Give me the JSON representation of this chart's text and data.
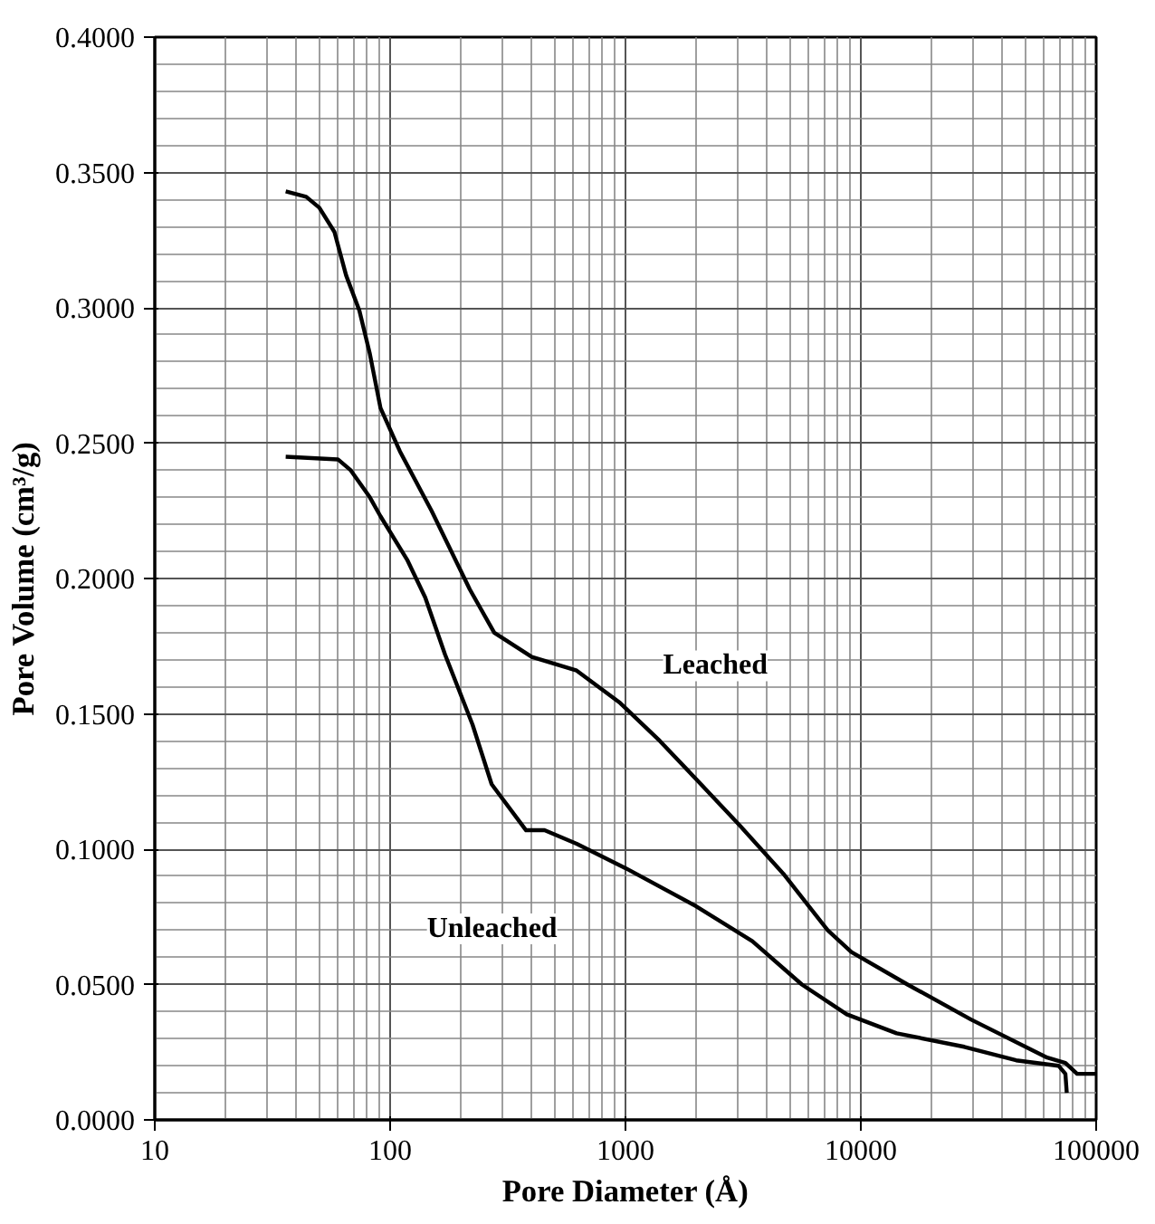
{
  "chart_data": {
    "type": "line",
    "xlabel": "Pore Diameter (Å)",
    "ylabel": "Pore Volume (cm³/g)",
    "log": "x",
    "grid": true,
    "line_style": "solid",
    "marker": "none",
    "xlim": [
      10,
      100000
    ],
    "ylim": [
      0,
      0.4
    ],
    "xticks": [
      10,
      100,
      1000,
      10000,
      100000
    ],
    "yticks": [
      {
        "value": 0,
        "label": "0.0000"
      },
      {
        "value": 0.05,
        "label": "0.0500"
      },
      {
        "value": 0.1,
        "label": "0.1000"
      },
      {
        "value": 0.15,
        "label": "0.1500"
      },
      {
        "value": 0.2,
        "label": "0.2000"
      },
      {
        "value": 0.25,
        "label": "0.2500"
      },
      {
        "value": 0.3,
        "label": "0.3000"
      },
      {
        "value": 0.35,
        "label": "0.3500"
      },
      {
        "value": 0.4,
        "label": "0.4000"
      }
    ],
    "series": [
      {
        "name": "Leached",
        "color": "#000000",
        "x": [
          36,
          44,
          50,
          58,
          65,
          74,
          82,
          91,
          110,
          150,
          218,
          277,
          400,
          620,
          950,
          1400,
          1990,
          3040,
          4680,
          7240,
          9120,
          15800,
          29500,
          61900,
          74000,
          83000,
          100000
        ],
        "values": [
          0.343,
          0.341,
          0.337,
          0.328,
          0.312,
          0.299,
          0.283,
          0.263,
          0.247,
          0.225,
          0.196,
          0.18,
          0.171,
          0.166,
          0.154,
          0.14,
          0.126,
          0.109,
          0.091,
          0.07,
          0.062,
          0.05,
          0.037,
          0.023,
          0.021,
          0.017,
          0.017
        ]
      },
      {
        "name": "Unleached",
        "color": "#000000",
        "x": [
          36,
          60,
          68,
          82,
          91,
          118,
          141,
          171,
          224,
          270,
          378,
          453,
          620,
          1000,
          1990,
          3460,
          5620,
          8710,
          14200,
          27500,
          45700,
          69200,
          74000,
          75000
        ],
        "values": [
          0.245,
          0.244,
          0.24,
          0.23,
          0.223,
          0.207,
          0.193,
          0.172,
          0.146,
          0.124,
          0.107,
          0.107,
          0.102,
          0.093,
          0.079,
          0.066,
          0.05,
          0.039,
          0.032,
          0.027,
          0.022,
          0.02,
          0.017,
          0.01
        ]
      }
    ]
  }
}
